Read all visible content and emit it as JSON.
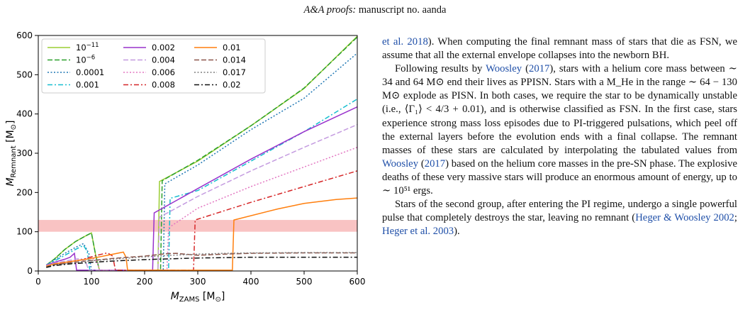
{
  "header": {
    "journal": "A&A proofs:",
    "rest": " manuscript no. aanda"
  },
  "chart_data": {
    "type": "line",
    "xlabel": "M_ZAMS [M_⊙]",
    "ylabel": "M_Remnant [M_⊙]",
    "xlim": [
      0,
      600
    ],
    "ylim": [
      0,
      600
    ],
    "xticks": [
      0,
      100,
      200,
      300,
      400,
      500,
      600
    ],
    "yticks": [
      0,
      100,
      200,
      300,
      400,
      500,
      600
    ],
    "grid": false,
    "legend_position": "top-left",
    "shaded_band": {
      "y0": 100,
      "y1": 130,
      "color": "#f9c3c3"
    },
    "series": [
      {
        "name": "10^-11",
        "color": "#9acd32",
        "dash": "solid",
        "points": [
          [
            15,
            15
          ],
          [
            30,
            30
          ],
          [
            50,
            55
          ],
          [
            70,
            75
          ],
          [
            90,
            90
          ],
          [
            100,
            97
          ],
          [
            108,
            40
          ],
          [
            115,
            2
          ],
          [
            225,
            2
          ],
          [
            228,
            228
          ],
          [
            300,
            280
          ],
          [
            400,
            370
          ],
          [
            500,
            465
          ],
          [
            600,
            598
          ]
        ]
      },
      {
        "name": "10^-6",
        "color": "#2ca02c",
        "dash": "dash",
        "points": [
          [
            15,
            15
          ],
          [
            30,
            30
          ],
          [
            50,
            55
          ],
          [
            70,
            75
          ],
          [
            90,
            90
          ],
          [
            100,
            97
          ],
          [
            108,
            40
          ],
          [
            115,
            2
          ],
          [
            230,
            2
          ],
          [
            233,
            230
          ],
          [
            300,
            282
          ],
          [
            400,
            370
          ],
          [
            500,
            466
          ],
          [
            600,
            596
          ]
        ]
      },
      {
        "name": "0.0001",
        "color": "#1f77b4",
        "dash": "dot",
        "points": [
          [
            15,
            15
          ],
          [
            30,
            28
          ],
          [
            50,
            45
          ],
          [
            70,
            60
          ],
          [
            85,
            70
          ],
          [
            95,
            45
          ],
          [
            100,
            2
          ],
          [
            235,
            2
          ],
          [
            238,
            222
          ],
          [
            300,
            270
          ],
          [
            400,
            360
          ],
          [
            500,
            440
          ],
          [
            600,
            555
          ]
        ]
      },
      {
        "name": "0.001",
        "color": "#17becf",
        "dash": "dashdot",
        "points": [
          [
            15,
            15
          ],
          [
            30,
            25
          ],
          [
            50,
            40
          ],
          [
            70,
            55
          ],
          [
            85,
            65
          ],
          [
            92,
            50
          ],
          [
            97,
            2
          ],
          [
            245,
            2
          ],
          [
            248,
            185
          ],
          [
            300,
            205
          ],
          [
            400,
            280
          ],
          [
            500,
            355
          ],
          [
            600,
            438
          ]
        ]
      },
      {
        "name": "0.002",
        "color": "#9932cc",
        "dash": "solid",
        "points": [
          [
            15,
            15
          ],
          [
            30,
            22
          ],
          [
            50,
            30
          ],
          [
            60,
            35
          ],
          [
            68,
            45
          ],
          [
            72,
            2
          ],
          [
            215,
            2
          ],
          [
            218,
            148
          ],
          [
            300,
            210
          ],
          [
            400,
            285
          ],
          [
            500,
            355
          ],
          [
            600,
            418
          ]
        ]
      },
      {
        "name": "0.004",
        "color": "#c49be0",
        "dash": "dash",
        "points": [
          [
            15,
            14
          ],
          [
            30,
            20
          ],
          [
            50,
            25
          ],
          [
            70,
            30
          ],
          [
            80,
            32
          ],
          [
            90,
            20
          ],
          [
            95,
            2
          ],
          [
            225,
            2
          ],
          [
            228,
            137
          ],
          [
            300,
            190
          ],
          [
            400,
            255
          ],
          [
            500,
            315
          ],
          [
            600,
            373
          ]
        ]
      },
      {
        "name": "0.006",
        "color": "#e377c2",
        "dash": "dot",
        "points": [
          [
            15,
            12
          ],
          [
            30,
            18
          ],
          [
            50,
            22
          ],
          [
            80,
            28
          ],
          [
            100,
            35
          ],
          [
            110,
            25
          ],
          [
            115,
            2
          ],
          [
            242,
            2
          ],
          [
            245,
            110
          ],
          [
            300,
            160
          ],
          [
            400,
            215
          ],
          [
            500,
            265
          ],
          [
            600,
            315
          ]
        ]
      },
      {
        "name": "0.008",
        "color": "#d62728",
        "dash": "dashdot",
        "points": [
          [
            15,
            12
          ],
          [
            30,
            18
          ],
          [
            50,
            22
          ],
          [
            80,
            28
          ],
          [
            110,
            40
          ],
          [
            130,
            46
          ],
          [
            140,
            38
          ],
          [
            145,
            2
          ],
          [
            292,
            2
          ],
          [
            295,
            130
          ],
          [
            400,
            175
          ],
          [
            500,
            215
          ],
          [
            600,
            255
          ]
        ]
      },
      {
        "name": "0.01",
        "color": "#ff7f0e",
        "dash": "solid",
        "points": [
          [
            15,
            12
          ],
          [
            30,
            18
          ],
          [
            60,
            24
          ],
          [
            100,
            32
          ],
          [
            130,
            40
          ],
          [
            160,
            48
          ],
          [
            165,
            35
          ],
          [
            168,
            2
          ],
          [
            365,
            2
          ],
          [
            368,
            130
          ],
          [
            450,
            158
          ],
          [
            500,
            172
          ],
          [
            560,
            182
          ],
          [
            600,
            186
          ]
        ]
      },
      {
        "name": "0.014",
        "color": "#8c564b",
        "dash": "dash",
        "points": [
          [
            15,
            10
          ],
          [
            30,
            16
          ],
          [
            60,
            21
          ],
          [
            100,
            27
          ],
          [
            150,
            33
          ],
          [
            200,
            38
          ],
          [
            240,
            44
          ],
          [
            260,
            45
          ],
          [
            300,
            40
          ],
          [
            350,
            43
          ],
          [
            400,
            45
          ],
          [
            500,
            46
          ],
          [
            600,
            46
          ]
        ]
      },
      {
        "name": "0.017",
        "color": "#7f7f7f",
        "dash": "dot",
        "points": [
          [
            15,
            10
          ],
          [
            30,
            15
          ],
          [
            60,
            20
          ],
          [
            100,
            26
          ],
          [
            150,
            31
          ],
          [
            200,
            36
          ],
          [
            250,
            40
          ],
          [
            300,
            43
          ],
          [
            350,
            45
          ],
          [
            400,
            46
          ],
          [
            500,
            47
          ],
          [
            600,
            47
          ]
        ]
      },
      {
        "name": "0.02",
        "color": "#111111",
        "dash": "dashdot",
        "points": [
          [
            15,
            9
          ],
          [
            30,
            14
          ],
          [
            60,
            18
          ],
          [
            100,
            22
          ],
          [
            150,
            26
          ],
          [
            200,
            29
          ],
          [
            250,
            31
          ],
          [
            300,
            33
          ],
          [
            350,
            34
          ],
          [
            400,
            35
          ],
          [
            500,
            35
          ],
          [
            600,
            35
          ]
        ]
      }
    ]
  },
  "paragraphs": [
    {
      "indent": false,
      "spans": [
        {
          "t": "et al. 2018",
          "cite": true
        },
        {
          "t": "). When computing the final remnant mass of stars that die as FSN, we assume that all the external envelope collapses into the newborn BH."
        }
      ]
    },
    {
      "indent": true,
      "spans": [
        {
          "t": "Following results by "
        },
        {
          "t": "Woosley",
          "cite": true
        },
        {
          "t": " ("
        },
        {
          "t": "2017",
          "cite": true
        },
        {
          "t": "), stars with a helium core mass between ∼ 34 and 64 M⊙ end their lives as PPISN. Stars with a M_He in the range ∼ 64 − 130 M⊙ explode as PISN. In both cases, we require the star to be dynamically unstable (i.e., ⟨Γ₁⟩ < 4/3 + 0.01), and is otherwise classified as FSN. In the first case, stars experience strong mass loss episodes due to PI-triggered pulsations, which peel off the external layers before the evolution ends with a final collapse. The remnant masses of these stars are calculated by interpolating the tabulated values from "
        },
        {
          "t": "Woosley",
          "cite": true
        },
        {
          "t": " ("
        },
        {
          "t": "2017",
          "cite": true
        },
        {
          "t": ") based on the helium core masses in the pre-SN phase. The explosive deaths of these very massive stars will produce an enormous amount of energy, up to ∼ 10⁵¹ ergs."
        }
      ]
    },
    {
      "indent": true,
      "spans": [
        {
          "t": "Stars of the second group, after entering the PI regime, undergo a single powerful pulse that completely destroys the star, leaving no remnant ("
        },
        {
          "t": "Heger & Woosley 2002",
          "cite": true
        },
        {
          "t": "; "
        },
        {
          "t": "Heger et al. 2003",
          "cite": true
        },
        {
          "t": ")."
        }
      ]
    }
  ]
}
